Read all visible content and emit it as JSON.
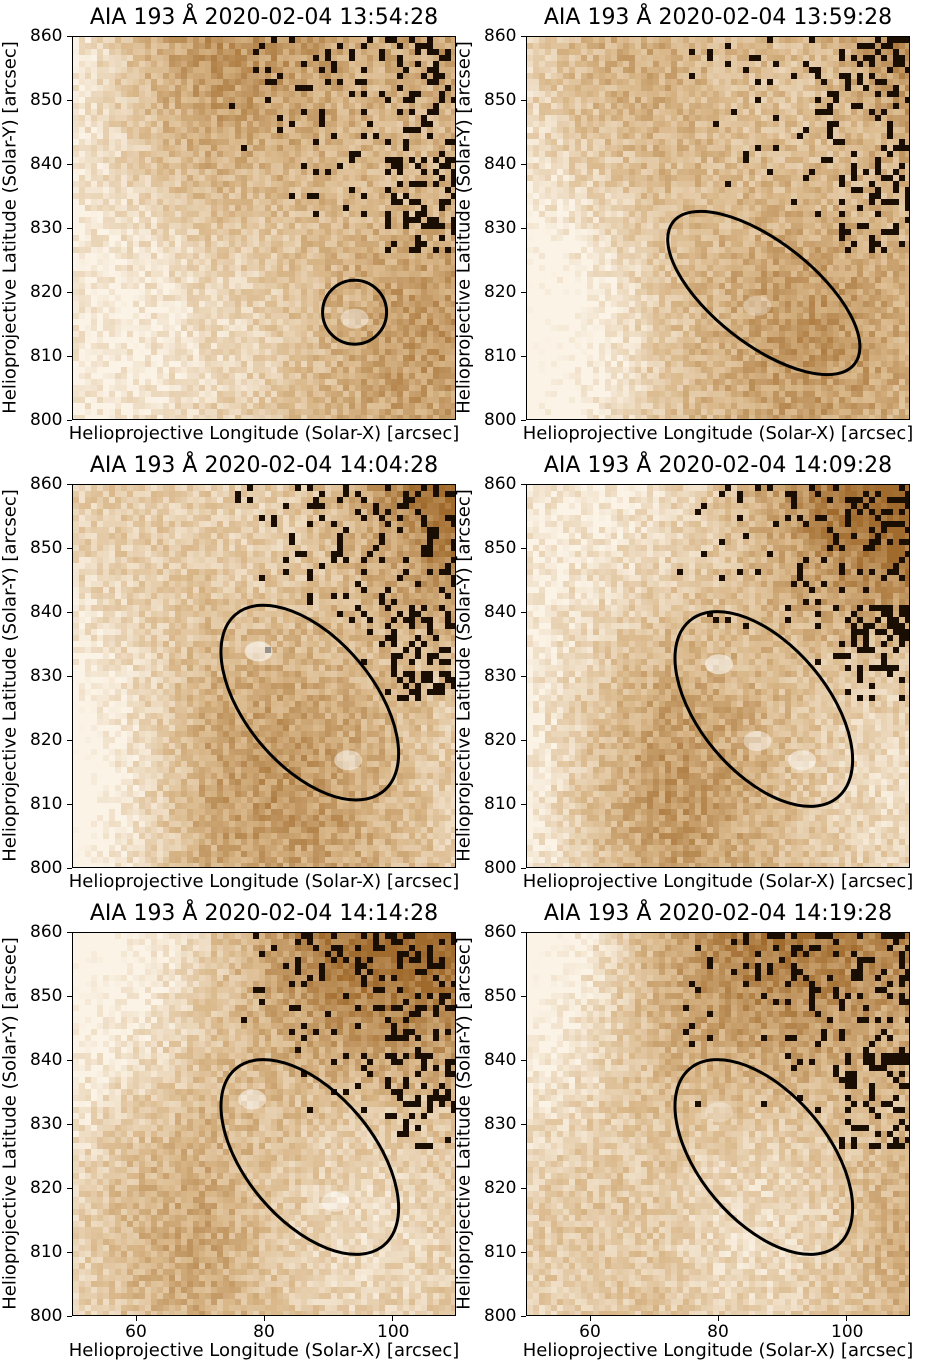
{
  "colors": {
    "light": "#fbf3e6",
    "mid": "#d9b789",
    "dark": "#a06a2c",
    "speck": "#1a0d02",
    "ellipse": "#000000"
  },
  "panels": [
    {
      "title": "AIA 193 Å 2020-02-04 13:54:28",
      "ylabel": "Helioprojective Latitude (Solar-Y) [arcsec]",
      "xlabel": "Helioprojective Longitude (Solar-X) [arcsec]",
      "yticks": [
        "860",
        "850",
        "840",
        "830",
        "820",
        "810",
        "800"
      ],
      "xticks": [],
      "region": {
        "shape": "circle",
        "cx": 94,
        "cy": 817,
        "r": 5
      },
      "bright_spots": [
        {
          "x": 94,
          "y": 816,
          "strength": 0.8
        }
      ]
    },
    {
      "title": "AIA 193 Å 2020-02-04 13:59:28",
      "ylabel": "Helioprojective Latitude (Solar-Y) [arcsec]",
      "xlabel": "Helioprojective Longitude (Solar-X) [arcsec]",
      "yticks": [
        "860",
        "850",
        "840",
        "830",
        "820",
        "810",
        "800"
      ],
      "xticks": [],
      "region": {
        "shape": "ellipse",
        "cx": 87,
        "cy": 820,
        "rx": 18,
        "ry": 8,
        "angle_deg": 38
      },
      "bright_spots": [
        {
          "x": 86,
          "y": 818,
          "strength": 0.5
        }
      ]
    },
    {
      "title": "AIA 193 Å 2020-02-04 14:04:28",
      "ylabel": "Helioprojective Latitude (Solar-Y) [arcsec]",
      "xlabel": "Helioprojective Longitude (Solar-X) [arcsec]",
      "yticks": [
        "860",
        "850",
        "840",
        "830",
        "820",
        "810",
        "800"
      ],
      "xticks": [],
      "region": {
        "shape": "ellipse",
        "cx": 87,
        "cy": 826,
        "rx": 18,
        "ry": 10,
        "angle_deg": 50
      },
      "bright_spots": [
        {
          "x": 79,
          "y": 834,
          "strength": 1.0
        },
        {
          "x": 93,
          "y": 817,
          "strength": 0.9
        }
      ]
    },
    {
      "title": "AIA 193 Å 2020-02-04 14:09:28",
      "ylabel": "Helioprojective Latitude (Solar-Y) [arcsec]",
      "xlabel": "Helioprojective Longitude (Solar-X) [arcsec]",
      "yticks": [
        "860",
        "850",
        "840",
        "830",
        "820",
        "810",
        "800"
      ],
      "xticks": [],
      "region": {
        "shape": "ellipse",
        "cx": 87,
        "cy": 825,
        "rx": 18,
        "ry": 10,
        "angle_deg": 50
      },
      "bright_spots": [
        {
          "x": 80,
          "y": 832,
          "strength": 1.0
        },
        {
          "x": 86,
          "y": 820,
          "strength": 0.8
        },
        {
          "x": 93,
          "y": 817,
          "strength": 0.9
        }
      ]
    },
    {
      "title": "AIA 193 Å 2020-02-04 14:14:28",
      "ylabel": "Helioprojective Latitude (Solar-Y) [arcsec]",
      "xlabel": "Helioprojective Longitude (Solar-X) [arcsec]",
      "yticks": [
        "860",
        "850",
        "840",
        "830",
        "820",
        "810",
        "800"
      ],
      "xticks": [
        "60",
        "80",
        "100"
      ],
      "region": {
        "shape": "ellipse",
        "cx": 87,
        "cy": 825,
        "rx": 18,
        "ry": 10,
        "angle_deg": 50
      },
      "bright_spots": [
        {
          "x": 78,
          "y": 834,
          "strength": 0.9
        },
        {
          "x": 91,
          "y": 818,
          "strength": 0.8
        }
      ]
    },
    {
      "title": "AIA 193 Å 2020-02-04 14:19:28",
      "ylabel": "Helioprojective Latitude (Solar-Y) [arcsec]",
      "xlabel": "Helioprojective Longitude (Solar-X) [arcsec]",
      "yticks": [
        "860",
        "850",
        "840",
        "830",
        "820",
        "810",
        "800"
      ],
      "xticks": [
        "60",
        "80",
        "100"
      ],
      "region": {
        "shape": "ellipse",
        "cx": 87,
        "cy": 825,
        "rx": 18,
        "ry": 10,
        "angle_deg": 50
      },
      "bright_spots": [
        {
          "x": 80,
          "y": 832,
          "strength": 0.5
        }
      ]
    }
  ]
}
